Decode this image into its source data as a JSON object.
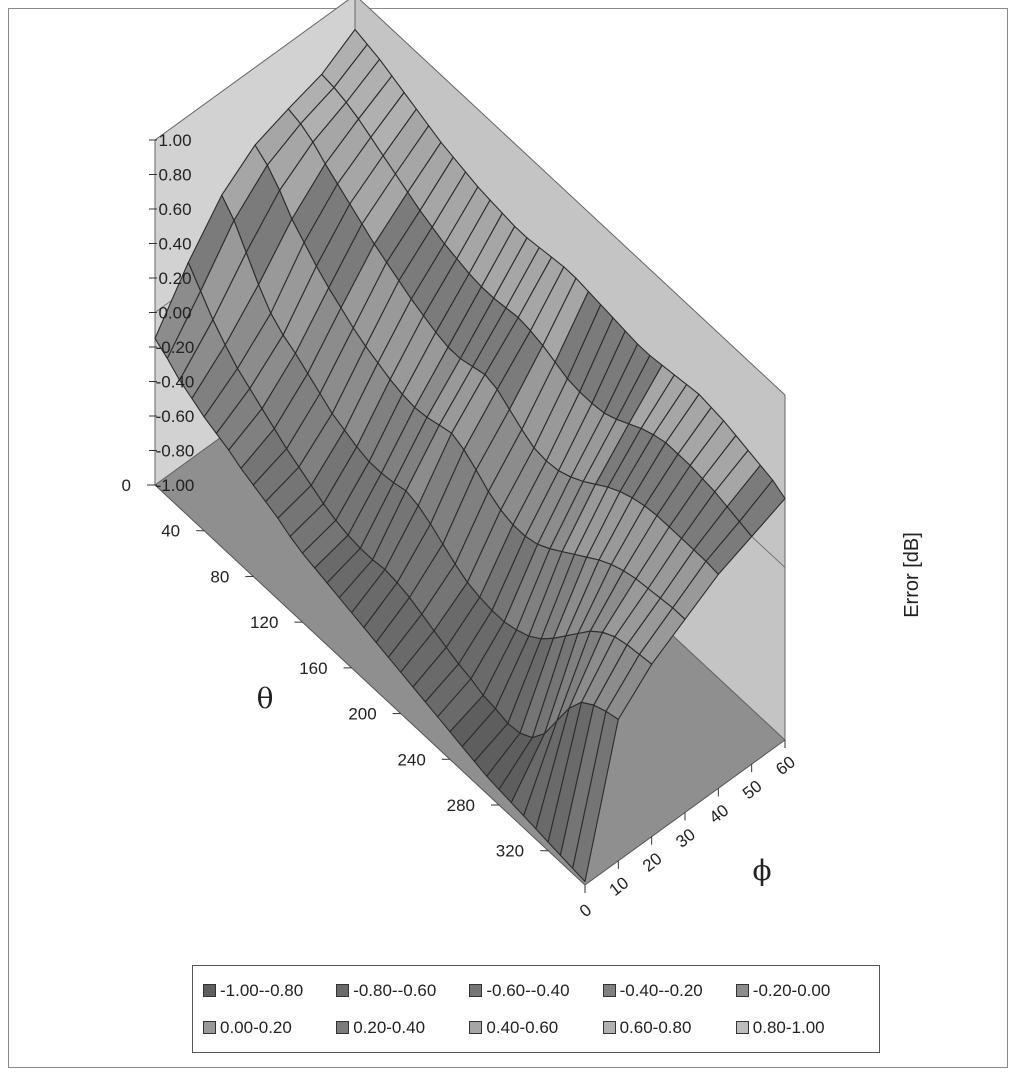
{
  "chart_data": {
    "type": "surface3d",
    "z_axis": {
      "title": "Error [dB]",
      "ticks": [
        "1.00",
        "0.80",
        "0.60",
        "0.40",
        "0.20",
        "0.00",
        "-0.20",
        "-0.40",
        "-0.60",
        "-0.80",
        "-1.00"
      ],
      "range": [
        -1.0,
        1.0
      ]
    },
    "theta_axis": {
      "title": "θ",
      "ticks": [
        "0",
        "40",
        "80",
        "120",
        "160",
        "200",
        "240",
        "280",
        "320"
      ],
      "range": [
        0,
        350
      ]
    },
    "phi_axis": {
      "title": "ϕ",
      "ticks": [
        "0",
        "10",
        "20",
        "30",
        "40",
        "50",
        "60"
      ],
      "range": [
        0,
        60
      ]
    },
    "theta": [
      0,
      10,
      20,
      30,
      40,
      50,
      60,
      70,
      80,
      90,
      100,
      110,
      120,
      130,
      140,
      150,
      160,
      170,
      180,
      190,
      200,
      210,
      220,
      230,
      240,
      250,
      260,
      270,
      280,
      290,
      300,
      310,
      320,
      330,
      340,
      350
    ],
    "phi": [
      0,
      10,
      20,
      30,
      40,
      50,
      60
    ],
    "error_by_phi": [
      {
        "phi": 0,
        "values": [
          -0.15,
          -0.2,
          -0.26,
          -0.3,
          -0.34,
          -0.37,
          -0.4,
          -0.44,
          -0.47,
          -0.5,
          -0.53,
          -0.57,
          -0.6,
          -0.62,
          -0.64,
          -0.66,
          -0.68,
          -0.7,
          -0.72,
          -0.74,
          -0.76,
          -0.78,
          -0.8,
          -0.82,
          -0.84,
          -0.86,
          -0.88,
          -0.9,
          -0.91,
          -0.92,
          -0.93,
          -0.94,
          -0.95,
          -0.96,
          -0.97,
          -0.98
        ]
      },
      {
        "phi": 10,
        "values": [
          0.15,
          0.05,
          -0.05,
          -0.13,
          -0.2,
          -0.25,
          -0.3,
          -0.35,
          -0.4,
          -0.44,
          -0.48,
          -0.52,
          -0.55,
          -0.57,
          -0.58,
          -0.58,
          -0.57,
          -0.58,
          -0.6,
          -0.63,
          -0.66,
          -0.69,
          -0.72,
          -0.74,
          -0.77,
          -0.78,
          -0.8,
          -0.79,
          -0.75,
          -0.66,
          -0.52,
          -0.38,
          -0.28,
          -0.23,
          -0.2,
          -0.18
        ]
      },
      {
        "phi": 20,
        "values": [
          0.4,
          0.32,
          0.2,
          0.08,
          -0.02,
          -0.08,
          -0.12,
          -0.17,
          -0.22,
          -0.27,
          -0.3,
          -0.33,
          -0.35,
          -0.35,
          -0.34,
          -0.32,
          -0.34,
          -0.38,
          -0.43,
          -0.48,
          -0.52,
          -0.54,
          -0.55,
          -0.55,
          -0.53,
          -0.5,
          -0.45,
          -0.38,
          -0.3,
          -0.22,
          -0.14,
          -0.08,
          -0.04,
          -0.02,
          -0.01,
          0.0
        ]
      },
      {
        "phi": 30,
        "values": [
          0.55,
          0.5,
          0.42,
          0.32,
          0.25,
          0.18,
          0.12,
          0.07,
          0.02,
          -0.02,
          -0.05,
          -0.08,
          -0.1,
          -0.11,
          -0.1,
          -0.08,
          -0.06,
          -0.09,
          -0.14,
          -0.2,
          -0.24,
          -0.26,
          -0.26,
          -0.24,
          -0.2,
          -0.15,
          -0.1,
          -0.05,
          0.0,
          0.04,
          0.07,
          0.09,
          0.1,
          0.11,
          0.12,
          0.12
        ]
      },
      {
        "phi": 40,
        "values": [
          0.62,
          0.6,
          0.56,
          0.5,
          0.45,
          0.4,
          0.35,
          0.3,
          0.26,
          0.22,
          0.18,
          0.15,
          0.12,
          0.1,
          0.1,
          0.12,
          0.14,
          0.12,
          0.07,
          0.02,
          -0.02,
          -0.03,
          -0.02,
          0.01,
          0.05,
          0.1,
          0.15,
          0.19,
          0.22,
          0.24,
          0.25,
          0.25,
          0.25,
          0.25,
          0.25,
          0.24
        ]
      },
      {
        "phi": 50,
        "values": [
          0.68,
          0.67,
          0.65,
          0.62,
          0.58,
          0.54,
          0.5,
          0.46,
          0.42,
          0.39,
          0.36,
          0.34,
          0.32,
          0.31,
          0.31,
          0.32,
          0.33,
          0.32,
          0.3,
          0.27,
          0.24,
          0.23,
          0.23,
          0.24,
          0.27,
          0.31,
          0.35,
          0.38,
          0.4,
          0.4,
          0.4,
          0.39,
          0.38,
          0.36,
          0.34,
          0.32
        ]
      },
      {
        "phi": 60,
        "values": [
          0.8,
          0.78,
          0.76,
          0.73,
          0.7,
          0.67,
          0.64,
          0.61,
          0.59,
          0.57,
          0.55,
          0.54,
          0.53,
          0.52,
          0.52,
          0.53,
          0.54,
          0.55,
          0.55,
          0.54,
          0.53,
          0.52,
          0.51,
          0.5,
          0.5,
          0.51,
          0.52,
          0.53,
          0.54,
          0.53,
          0.52,
          0.5,
          0.48,
          0.46,
          0.44,
          0.4
        ]
      }
    ],
    "legend": {
      "placement": "bottom",
      "entries": [
        {
          "label": "-1.00--0.80",
          "color": "#5e5e5e"
        },
        {
          "label": "-0.80--0.60",
          "color": "#6a6a6a"
        },
        {
          "label": "-0.60--0.40",
          "color": "#757575"
        },
        {
          "label": "-0.40--0.20",
          "color": "#808080"
        },
        {
          "label": "-0.20-0.00",
          "color": "#8c8c8c"
        },
        {
          "label": "0.00-0.20",
          "color": "#999999"
        },
        {
          "label": "0.20-0.40",
          "color": "#7b7b7b"
        },
        {
          "label": "0.40-0.60",
          "color": "#a6a6a6"
        },
        {
          "label": "0.60-0.80",
          "color": "#b0b0b0"
        },
        {
          "label": "0.80-1.00",
          "color": "#bdbdbd"
        }
      ]
    },
    "colors": {
      "back_wall": "#c4c4c4",
      "side_wall": "#d2d2d2",
      "floor": "#8f8f8f",
      "mesh_line": "#2c2c2c"
    }
  }
}
